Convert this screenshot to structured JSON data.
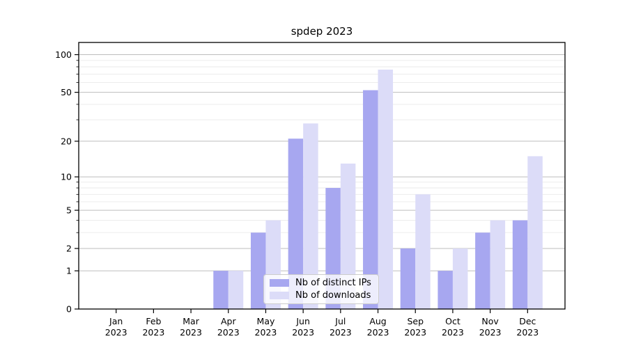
{
  "title": "spdep 2023",
  "chart_data": {
    "type": "bar",
    "title": "spdep 2023",
    "year_label": "2023",
    "categories": [
      "Jan",
      "Feb",
      "Mar",
      "Apr",
      "May",
      "Jun",
      "Jul",
      "Aug",
      "Sep",
      "Oct",
      "Nov",
      "Dec"
    ],
    "series": [
      {
        "name": "Nb of distinct IPs",
        "color": "#a7a7f0",
        "values": [
          0,
          0,
          0,
          1,
          3,
          21,
          8,
          52,
          2,
          1,
          3,
          4
        ]
      },
      {
        "name": "Nb of downloads",
        "color": "#dcdcf8",
        "values": [
          0,
          0,
          0,
          1,
          4,
          28,
          13,
          76,
          7,
          2,
          4,
          15
        ]
      }
    ],
    "y_scale": "log1p",
    "ylim": [
      0,
      125
    ],
    "y_ticks": [
      0,
      1,
      2,
      5,
      10,
      20,
      50,
      100
    ],
    "y_minor_ticks": [
      3,
      4,
      6,
      7,
      8,
      9,
      30,
      40,
      60,
      70,
      80,
      90
    ],
    "grid": true,
    "legend_position": "lower-center"
  },
  "style": {
    "axis_color": "#000000",
    "tick_label_color": "#000000",
    "grid_major_color": "#bdbdbd",
    "grid_minor_color": "#eaeaea",
    "background": "#ffffff"
  }
}
